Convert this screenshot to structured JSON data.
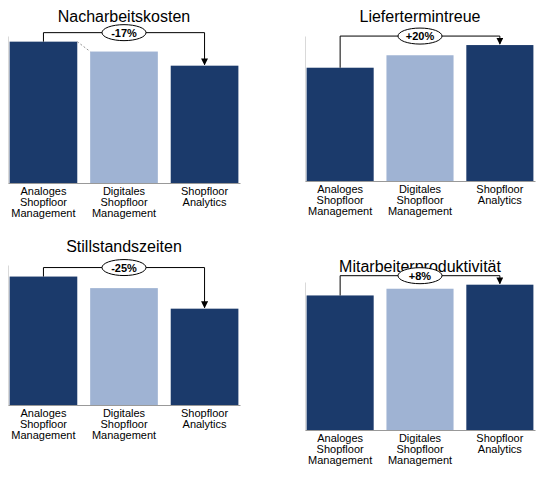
{
  "chart_data": [
    {
      "type": "bar",
      "title": "Nacharbeitskosten",
      "categories": [
        "Analoges Shopfloor Management",
        "Digitales Shopfloor Management",
        "Shopfloor Analytics"
      ],
      "values": [
        100,
        93,
        83
      ],
      "colors": [
        "#1b3a6b",
        "#9fb3d3",
        "#1b3a6b"
      ],
      "ylim": [
        0,
        104
      ],
      "tick_labels": "x",
      "annotation": "-17%"
    },
    {
      "type": "bar",
      "title": "Liefertermintreue",
      "categories": [
        "Analoges Shopfloor Management",
        "Digitales Shopfloor Management",
        "Shopfloor Analytics"
      ],
      "values": [
        100,
        111,
        120
      ],
      "colors": [
        "#1b3a6b",
        "#9fb3d3",
        "#1b3a6b"
      ],
      "ylim": [
        0,
        128
      ],
      "tick_labels": "x",
      "annotation": "+20%"
    },
    {
      "type": "bar",
      "title": "Stillstandszeiten",
      "categories": [
        "Analoges Shopfloor Management",
        "Digitales Shopfloor Management",
        "Shopfloor Analytics"
      ],
      "values": [
        100,
        91,
        75
      ],
      "colors": [
        "#1b3a6b",
        "#9fb3d3",
        "#1b3a6b"
      ],
      "ylim": [
        0,
        109
      ],
      "tick_labels": "x",
      "annotation": "-25%"
    },
    {
      "type": "bar",
      "title": "Mitarbeiterproduktivität",
      "categories": [
        "Analoges Shopfloor Management",
        "Digitales Shopfloor Management",
        "Shopfloor Analytics"
      ],
      "values": [
        100,
        105,
        108
      ],
      "colors": [
        "#1b3a6b",
        "#9fb3d3",
        "#1b3a6b"
      ],
      "ylim": [
        0,
        110
      ],
      "tick_labels": "x",
      "annotation": "+8%"
    }
  ]
}
